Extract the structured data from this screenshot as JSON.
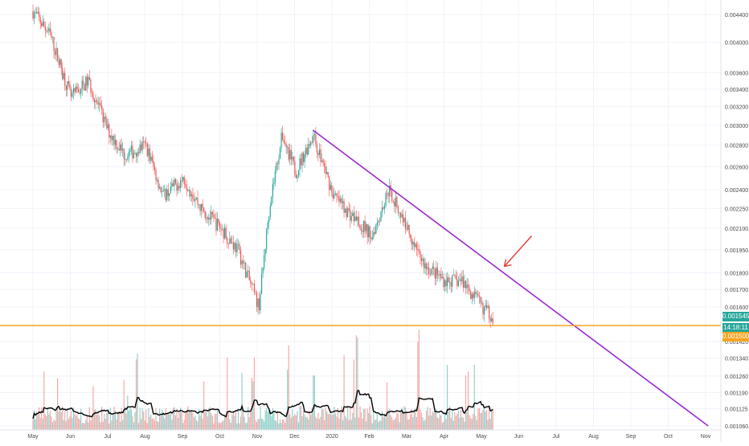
{
  "chart_data": {
    "type": "candlestick",
    "title": "",
    "xlabel": "",
    "ylabel": "",
    "y_scale": "log",
    "ylim": [
      0.00106,
      0.0045
    ],
    "grid": true,
    "x_tick_labels": [
      "May",
      "Jun",
      "Jul",
      "Aug",
      "Sep",
      "Oct",
      "Nov",
      "Dec",
      "2020",
      "Feb",
      "Mar",
      "Apr",
      "May",
      "Jun",
      "Jul",
      "Aug",
      "Sep",
      "Oct",
      "Nov"
    ],
    "y_tick_labels": [
      "0.004400",
      "0.004000",
      "0.003600",
      "0.003400",
      "0.003200",
      "0.003000",
      "0.002800",
      "0.002600",
      "0.002400",
      "0.002250",
      "0.002100",
      "0.001950",
      "0.001800",
      "0.001700",
      "0.001600",
      "0.001420",
      "0.001340",
      "0.001260",
      "0.001190",
      "0.001125",
      "0.001060"
    ],
    "y_tick_values": [
      0.0044,
      0.004,
      0.0036,
      0.0034,
      0.0032,
      0.003,
      0.0028,
      0.0026,
      0.0024,
      0.00225,
      0.0021,
      0.00195,
      0.0018,
      0.0017,
      0.0016,
      0.00142,
      0.00134,
      0.00126,
      0.00119,
      0.001125,
      0.00106
    ],
    "price_series": [
      {
        "date": "2019-05-01",
        "value": 0.00445
      },
      {
        "date": "2019-05-15",
        "value": 0.0041
      },
      {
        "date": "2019-06-01",
        "value": 0.0033
      },
      {
        "date": "2019-06-15",
        "value": 0.0035
      },
      {
        "date": "2019-07-01",
        "value": 0.00295
      },
      {
        "date": "2019-07-15",
        "value": 0.0027
      },
      {
        "date": "2019-08-01",
        "value": 0.0028
      },
      {
        "date": "2019-08-15",
        "value": 0.00235
      },
      {
        "date": "2019-09-01",
        "value": 0.0025
      },
      {
        "date": "2019-09-15",
        "value": 0.00225
      },
      {
        "date": "2019-10-01",
        "value": 0.0021
      },
      {
        "date": "2019-10-15",
        "value": 0.00195
      },
      {
        "date": "2019-11-01",
        "value": 0.0016
      },
      {
        "date": "2019-11-10",
        "value": 0.0023
      },
      {
        "date": "2019-11-20",
        "value": 0.0029
      },
      {
        "date": "2019-12-01",
        "value": 0.00255
      },
      {
        "date": "2019-12-15",
        "value": 0.0029
      },
      {
        "date": "2020-01-01",
        "value": 0.00235
      },
      {
        "date": "2020-01-15",
        "value": 0.0022
      },
      {
        "date": "2020-02-01",
        "value": 0.00205
      },
      {
        "date": "2020-02-15",
        "value": 0.0024
      },
      {
        "date": "2020-03-01",
        "value": 0.0021
      },
      {
        "date": "2020-03-15",
        "value": 0.00185
      },
      {
        "date": "2020-04-01",
        "value": 0.00175
      },
      {
        "date": "2020-04-15",
        "value": 0.00175
      },
      {
        "date": "2020-05-01",
        "value": 0.0016
      },
      {
        "date": "2020-05-10",
        "value": 0.001545
      }
    ],
    "volume_spikes": [
      "2019-11-25",
      "2020-01-20",
      "2020-03-10"
    ],
    "annotations": [
      {
        "kind": "trendline",
        "color": "#9c27d6",
        "from": {
          "date": "2019-12-15",
          "value": 0.00295
        },
        "to": {
          "date": "2020-11-01",
          "value": 0.00106
        }
      },
      {
        "kind": "horizontal_line",
        "color": "#f5a623",
        "value": 0.0015
      },
      {
        "kind": "arrow",
        "color": "#e53935",
        "points_to": {
          "date": "2020-05-15",
          "value": 0.00183
        }
      }
    ],
    "price_labels": [
      {
        "text": "0.001545",
        "color": "#26a69a"
      },
      {
        "text": "14:18:11",
        "color": "#26a69a"
      },
      {
        "text": "0.001500",
        "color": "#f5a623"
      }
    ]
  }
}
